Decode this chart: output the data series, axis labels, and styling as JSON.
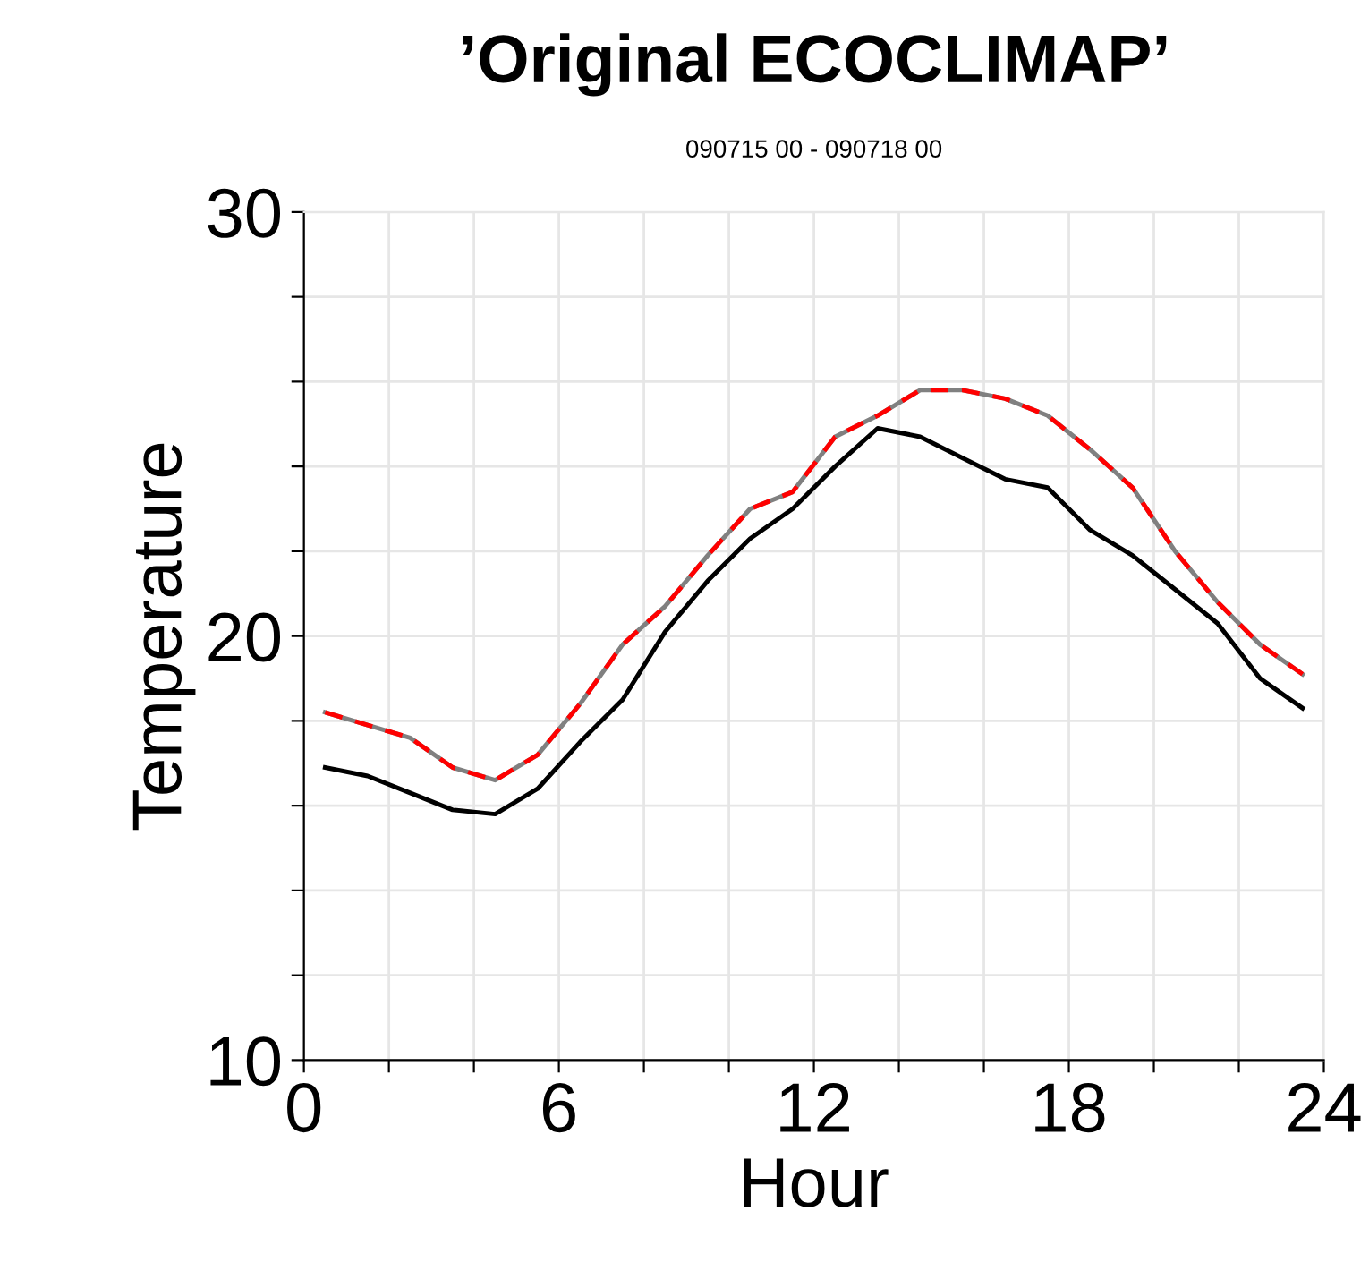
{
  "chart_data": {
    "type": "line",
    "title": "’Original ECOCLIMAP’",
    "subtitle": "090715 00 - 090718 00",
    "xlabel": "Hour",
    "ylabel": "Temperature",
    "x": [
      0.5,
      1.5,
      2.5,
      3.5,
      4.5,
      5.5,
      6.5,
      7.5,
      8.5,
      9.5,
      10.5,
      11.5,
      12.5,
      13.5,
      14.5,
      15.5,
      16.5,
      17.5,
      18.5,
      19.5,
      20.5,
      21.5,
      22.5,
      23.5
    ],
    "series": [
      {
        "color": "#808080",
        "line_style": "solid",
        "values": [
          18.2,
          17.9,
          17.6,
          16.9,
          16.6,
          17.2,
          18.4,
          19.8,
          20.7,
          21.9,
          23.0,
          23.4,
          24.7,
          25.2,
          25.8,
          25.8,
          25.6,
          25.2,
          24.4,
          23.5,
          22.0,
          20.8,
          19.8,
          19.1
        ]
      },
      {
        "color": "#ff0000",
        "line_style": "dashed",
        "values": [
          18.2,
          17.9,
          17.6,
          16.9,
          16.6,
          17.2,
          18.4,
          19.8,
          20.7,
          21.9,
          23.0,
          23.4,
          24.7,
          25.2,
          25.8,
          25.8,
          25.6,
          25.2,
          24.4,
          23.5,
          22.0,
          20.8,
          19.8,
          19.1
        ]
      },
      {
        "color": "#000000",
        "line_style": "solid",
        "values": [
          16.9,
          16.7,
          16.3,
          15.9,
          15.8,
          16.4,
          17.5,
          18.5,
          20.1,
          21.3,
          22.3,
          23.0,
          24.0,
          24.9,
          24.7,
          24.2,
          23.7,
          23.5,
          22.5,
          21.9,
          21.1,
          20.3,
          19.0,
          18.3
        ]
      }
    ],
    "xlim": [
      0,
      24
    ],
    "ylim": [
      10,
      30
    ],
    "xticks": [
      0,
      {
        "value": 2,
        "label": null
      },
      {
        "value": 4,
        "label": null
      },
      6,
      {
        "value": 8,
        "label": null
      },
      {
        "value": 10,
        "label": null
      },
      12,
      {
        "value": 14,
        "label": null
      },
      {
        "value": 16,
        "label": null
      },
      18,
      {
        "value": 20,
        "label": null
      },
      {
        "value": 22,
        "label": null
      },
      24
    ],
    "yticks": [
      10,
      {
        "value": 12,
        "label": null
      },
      {
        "value": 14,
        "label": null
      },
      {
        "value": 16,
        "label": null
      },
      {
        "value": 18,
        "label": null
      },
      20,
      {
        "value": 22,
        "label": null
      },
      {
        "value": 24,
        "label": null
      },
      {
        "value": 26,
        "label": null
      },
      {
        "value": 28,
        "label": null
      },
      30
    ],
    "grid": true,
    "legend": false,
    "marker": "none"
  }
}
